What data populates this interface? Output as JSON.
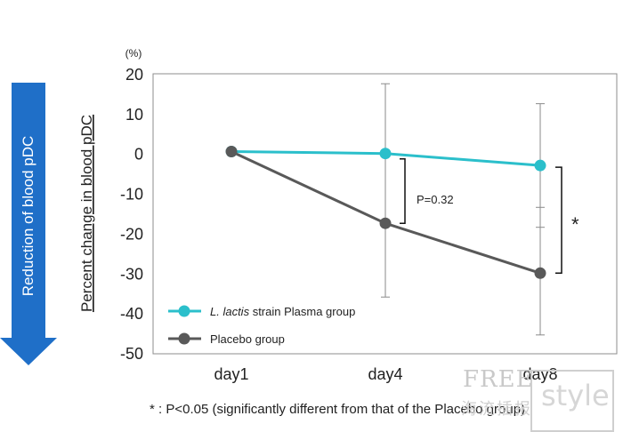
{
  "arrow_label": "Reduction of blood pDC",
  "colors": {
    "arrow": "#1f6fc8",
    "plasma": "#2bbfcb",
    "placebo": "#595959",
    "axis": "#333333",
    "errorbar": "#8a8a8a"
  },
  "chart_data": {
    "type": "line",
    "ylabel": "Percent change in blood pDC",
    "yunit": "(%)",
    "ylim": [
      -50,
      20
    ],
    "yticks": [
      20,
      10,
      0,
      -10,
      -20,
      -30,
      -40,
      -50
    ],
    "categories": [
      "day1",
      "day4",
      "day8"
    ],
    "series": [
      {
        "name": "L. lactis strain Plasma group",
        "name_italic": "L. lactis",
        "name_rest": " strain Plasma group",
        "values": [
          0.5,
          0,
          -3
        ],
        "color": "#2bbfcb",
        "err_hi": [
          null,
          17.5,
          12.5
        ],
        "err_lo": [
          null,
          -36,
          -45.5
        ]
      },
      {
        "name": "Placebo group",
        "values": [
          0.5,
          -17.5,
          -30
        ],
        "color": "#595959",
        "err_hi": [
          null,
          null,
          -13.5
        ],
        "err_lo": [
          null,
          null,
          -18.5
        ]
      }
    ],
    "annotations": [
      {
        "text": "P=0.32",
        "category": "day4"
      },
      {
        "text": "*",
        "category": "day8"
      }
    ],
    "legend_position": "bottom-left",
    "grid": false
  },
  "footnote": "* : P<0.05 (significantly different from that of the Placebo group)",
  "watermark": {
    "top": "FREE",
    "box": "style",
    "sub": "海流插报"
  }
}
